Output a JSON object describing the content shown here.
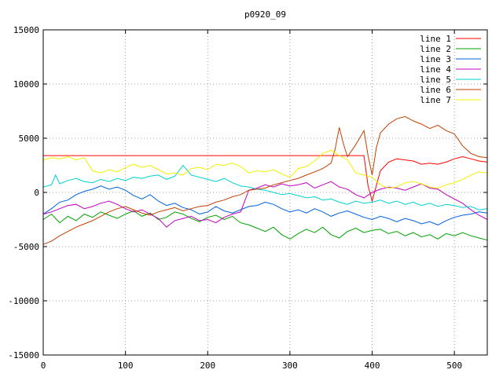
{
  "chart_data": {
    "type": "line",
    "title": "p0920_09",
    "xlabel": "",
    "ylabel": "",
    "xlim": [
      0,
      540
    ],
    "ylim": [
      -15000,
      15000
    ],
    "xticks": [
      0,
      100,
      200,
      300,
      400,
      500
    ],
    "yticks": [
      -15000,
      -10000,
      -5000,
      0,
      5000,
      10000,
      15000
    ],
    "grid": true,
    "legend_position": "top-right",
    "series": [
      {
        "name": "line 1",
        "color": "#ff0000",
        "x": [
          0,
          30,
          60,
          100,
          150,
          200,
          250,
          300,
          330,
          345,
          360,
          375,
          385,
          390,
          395,
          400,
          410,
          420,
          430,
          440,
          450,
          460,
          470,
          480,
          490,
          500,
          510,
          520,
          530,
          540
        ],
        "y": [
          3400,
          3400,
          3400,
          3400,
          3400,
          3400,
          3400,
          3400,
          3400,
          3400,
          3400,
          3400,
          3400,
          3400,
          600,
          -800,
          2000,
          2800,
          3100,
          3000,
          2900,
          2600,
          2700,
          2600,
          2800,
          3100,
          3300,
          3100,
          2900,
          2800
        ]
      },
      {
        "name": "line 2",
        "color": "#00a000",
        "x": [
          0,
          10,
          20,
          30,
          40,
          50,
          60,
          70,
          80,
          90,
          100,
          110,
          120,
          130,
          140,
          150,
          160,
          170,
          180,
          190,
          200,
          210,
          220,
          230,
          240,
          250,
          260,
          270,
          280,
          290,
          300,
          310,
          320,
          330,
          340,
          350,
          360,
          370,
          380,
          390,
          400,
          410,
          420,
          430,
          440,
          450,
          460,
          470,
          480,
          490,
          500,
          510,
          520,
          530,
          540
        ],
        "y": [
          -2500,
          -2000,
          -2800,
          -2200,
          -2600,
          -2000,
          -2300,
          -1800,
          -2100,
          -2400,
          -2000,
          -1700,
          -2200,
          -1900,
          -2500,
          -2300,
          -1800,
          -2000,
          -2400,
          -2700,
          -2300,
          -2100,
          -2500,
          -2200,
          -2800,
          -3000,
          -3300,
          -3600,
          -3200,
          -3900,
          -4300,
          -3800,
          -3400,
          -3700,
          -3200,
          -3900,
          -4200,
          -3600,
          -3300,
          -3700,
          -3500,
          -3400,
          -3800,
          -3600,
          -4000,
          -3700,
          -4100,
          -3900,
          -4300,
          -3800,
          -4000,
          -3700,
          -4000,
          -4200,
          -4400
        ]
      },
      {
        "name": "line 3",
        "color": "#0060e0",
        "x": [
          0,
          10,
          20,
          30,
          40,
          50,
          60,
          70,
          80,
          90,
          100,
          110,
          120,
          130,
          140,
          150,
          160,
          170,
          180,
          190,
          200,
          210,
          220,
          230,
          240,
          250,
          260,
          270,
          280,
          290,
          300,
          310,
          320,
          330,
          340,
          350,
          360,
          370,
          380,
          390,
          400,
          410,
          420,
          430,
          440,
          450,
          460,
          470,
          480,
          490,
          500,
          510,
          520,
          530,
          540
        ],
        "y": [
          -2000,
          -1500,
          -900,
          -700,
          -200,
          100,
          300,
          600,
          300,
          500,
          200,
          -300,
          -600,
          -200,
          -800,
          -1200,
          -1000,
          -1400,
          -1600,
          -2000,
          -1800,
          -1300,
          -1700,
          -1900,
          -1600,
          -1300,
          -1200,
          -900,
          -1100,
          -1500,
          -1800,
          -1600,
          -1900,
          -1500,
          -1800,
          -2200,
          -1900,
          -1700,
          -2000,
          -2300,
          -2500,
          -2200,
          -2400,
          -2700,
          -2400,
          -2600,
          -2900,
          -2700,
          -3000,
          -2600,
          -2300,
          -2100,
          -2000,
          -1800,
          -1900
        ]
      },
      {
        "name": "line 4",
        "color": "#c000c0",
        "x": [
          0,
          10,
          20,
          30,
          40,
          50,
          60,
          70,
          80,
          90,
          100,
          110,
          120,
          130,
          140,
          150,
          160,
          170,
          180,
          190,
          200,
          210,
          220,
          230,
          240,
          250,
          260,
          270,
          280,
          290,
          300,
          310,
          320,
          330,
          340,
          350,
          360,
          370,
          380,
          390,
          400,
          410,
          420,
          430,
          440,
          450,
          460,
          470,
          480,
          490,
          500,
          510,
          520,
          530,
          540
        ],
        "y": [
          -2000,
          -1800,
          -1500,
          -1200,
          -1100,
          -1500,
          -1300,
          -1000,
          -800,
          -1100,
          -1500,
          -1800,
          -1600,
          -2000,
          -2400,
          -3200,
          -2600,
          -2400,
          -2200,
          -2600,
          -2500,
          -2800,
          -2300,
          -2000,
          -1800,
          200,
          400,
          700,
          500,
          800,
          600,
          700,
          900,
          400,
          700,
          1000,
          500,
          300,
          -200,
          -500,
          0,
          300,
          500,
          400,
          200,
          500,
          800,
          400,
          300,
          -200,
          -600,
          -1000,
          -1600,
          -2100,
          -2500
        ]
      },
      {
        "name": "line 5",
        "color": "#00d0d0",
        "x": [
          0,
          10,
          15,
          20,
          30,
          40,
          50,
          60,
          70,
          80,
          90,
          100,
          110,
          120,
          130,
          140,
          150,
          160,
          170,
          180,
          190,
          200,
          210,
          220,
          230,
          240,
          250,
          260,
          270,
          280,
          290,
          300,
          310,
          320,
          330,
          340,
          350,
          360,
          370,
          380,
          390,
          400,
          410,
          420,
          430,
          440,
          450,
          460,
          470,
          480,
          490,
          500,
          510,
          520,
          530,
          540
        ],
        "y": [
          500,
          700,
          1600,
          800,
          1100,
          1300,
          1000,
          900,
          1200,
          1000,
          1300,
          1100,
          1400,
          1300,
          1500,
          1600,
          1200,
          1500,
          2500,
          1600,
          1400,
          1200,
          1000,
          1300,
          900,
          600,
          500,
          300,
          200,
          0,
          -200,
          -100,
          -300,
          -500,
          -400,
          -700,
          -600,
          -900,
          -1100,
          -800,
          -1000,
          -900,
          -700,
          -1000,
          -800,
          -1100,
          -900,
          -1200,
          -1000,
          -1300,
          -1100,
          -1200,
          -1400,
          -1300,
          -1600,
          -1500
        ]
      },
      {
        "name": "line 6",
        "color": "#c04000",
        "x": [
          0,
          10,
          20,
          30,
          40,
          50,
          60,
          70,
          80,
          90,
          100,
          110,
          120,
          130,
          140,
          150,
          160,
          170,
          180,
          190,
          200,
          210,
          220,
          230,
          240,
          250,
          260,
          270,
          280,
          290,
          300,
          310,
          320,
          330,
          340,
          350,
          355,
          360,
          365,
          370,
          380,
          390,
          395,
          400,
          405,
          410,
          420,
          430,
          440,
          450,
          460,
          470,
          480,
          490,
          500,
          510,
          520,
          530,
          540
        ],
        "y": [
          -4800,
          -4500,
          -4000,
          -3600,
          -3200,
          -2900,
          -2600,
          -2200,
          -1800,
          -1500,
          -1300,
          -1600,
          -1900,
          -2100,
          -1800,
          -1600,
          -1400,
          -1700,
          -1500,
          -1300,
          -1200,
          -900,
          -700,
          -400,
          -200,
          200,
          300,
          400,
          700,
          900,
          1100,
          1300,
          1600,
          1900,
          2200,
          2700,
          4000,
          6000,
          4500,
          3300,
          4400,
          5700,
          3400,
          1600,
          4100,
          5500,
          6300,
          6800,
          7000,
          6600,
          6300,
          5900,
          6200,
          5700,
          5400,
          4300,
          3600,
          3300,
          3200
        ]
      },
      {
        "name": "line 7",
        "color": "#f0f000",
        "x": [
          0,
          10,
          20,
          30,
          40,
          50,
          60,
          70,
          80,
          90,
          100,
          110,
          120,
          130,
          140,
          150,
          160,
          170,
          180,
          190,
          200,
          210,
          220,
          230,
          240,
          250,
          260,
          270,
          280,
          290,
          300,
          310,
          320,
          330,
          340,
          350,
          360,
          370,
          380,
          390,
          400,
          410,
          420,
          430,
          440,
          450,
          460,
          470,
          480,
          490,
          500,
          510,
          520,
          530,
          540
        ],
        "y": [
          3000,
          3200,
          3100,
          3300,
          3000,
          3200,
          2000,
          1800,
          2100,
          1900,
          2300,
          2600,
          2300,
          2500,
          2100,
          1700,
          1800,
          1600,
          2200,
          2300,
          2100,
          2600,
          2500,
          2700,
          2400,
          1800,
          2000,
          1900,
          2100,
          1700,
          1400,
          2200,
          2400,
          2900,
          3600,
          3900,
          3400,
          3000,
          1800,
          1600,
          1400,
          700,
          400,
          500,
          900,
          1000,
          800,
          500,
          400,
          700,
          900,
          1200,
          1600,
          1900,
          1800
        ]
      }
    ]
  }
}
